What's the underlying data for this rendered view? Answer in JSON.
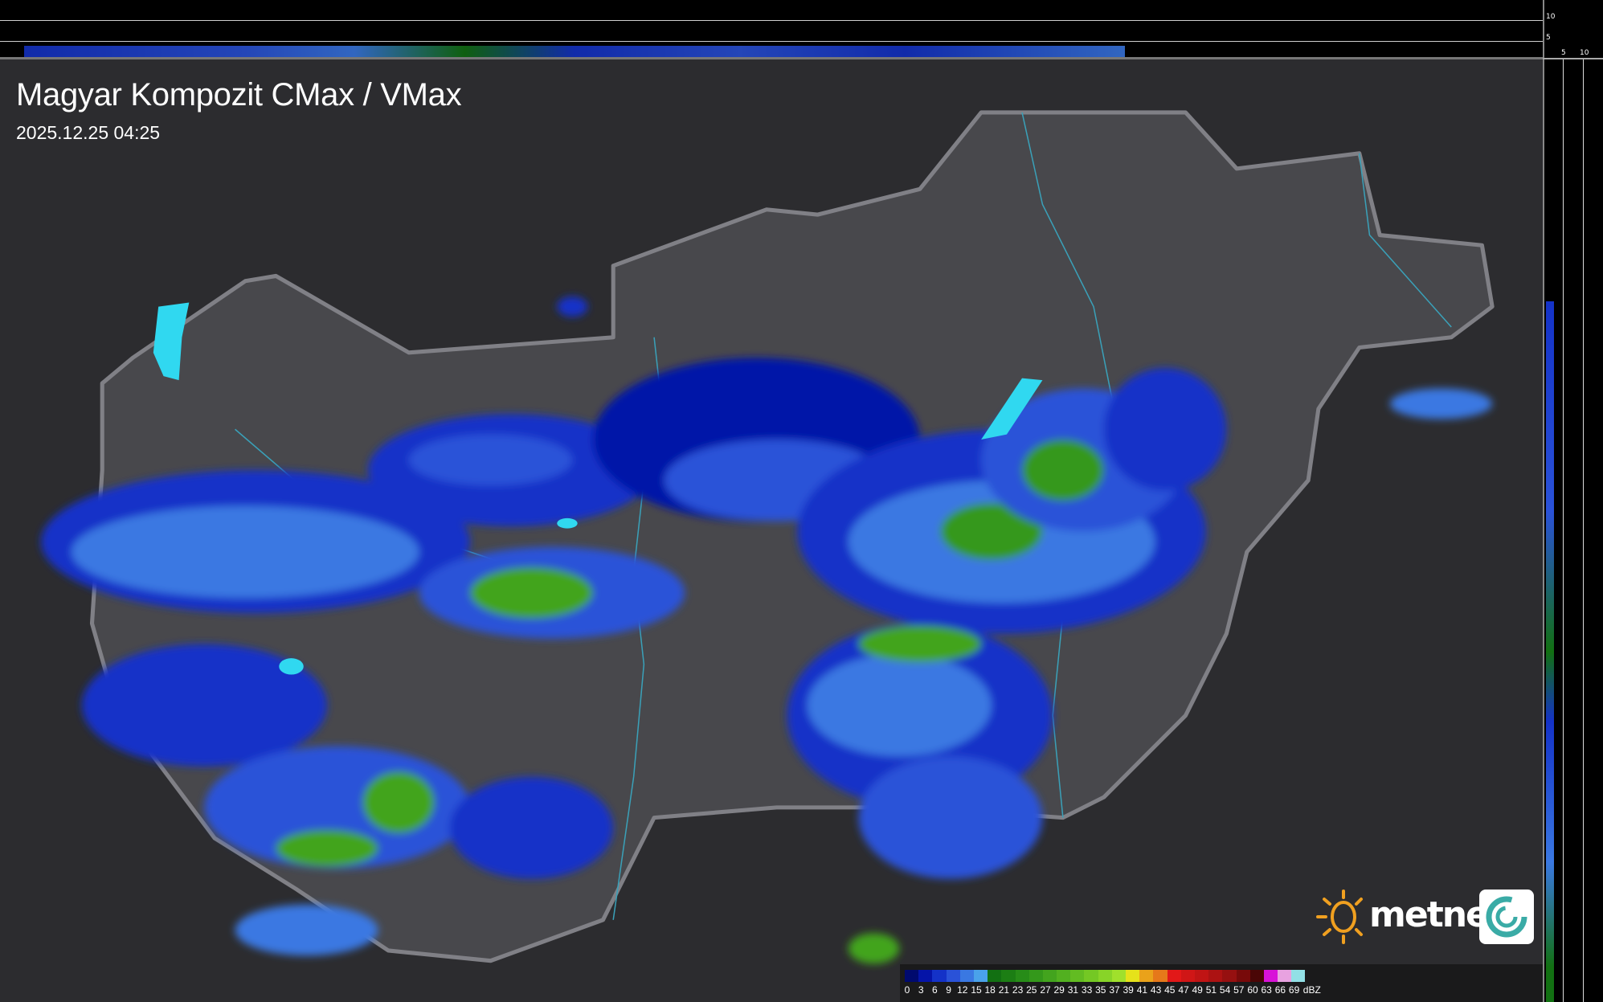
{
  "header": {
    "title": "Magyar Kompozit CMax / VMax",
    "timestamp": "2025.12.25 04:25"
  },
  "side_profiles": {
    "top_axis_labels": [
      "10",
      "5"
    ],
    "right_axis_labels": [
      "5",
      "10"
    ]
  },
  "legend": {
    "unit": "dBZ",
    "labels": [
      "0",
      "3",
      "6",
      "9",
      "12",
      "15",
      "18",
      "21",
      "23",
      "25",
      "27",
      "29",
      "31",
      "33",
      "35",
      "37",
      "39",
      "41",
      "43",
      "45",
      "47",
      "49",
      "51",
      "54",
      "57",
      "60",
      "63",
      "66",
      "69"
    ],
    "colors": [
      "#000a6e",
      "#0514a8",
      "#1432c8",
      "#2a52d8",
      "#3a78e2",
      "#4aa2ea",
      "#127012",
      "#1c7e14",
      "#278c18",
      "#34981b",
      "#43a41e",
      "#52b020",
      "#62bc22",
      "#74c824",
      "#88d428",
      "#a0e02c",
      "#e6e21a",
      "#eaa21a",
      "#e6781a",
      "#e21818",
      "#d01616",
      "#c01414",
      "#ac1212",
      "#961010",
      "#780a0a",
      "#4a0606",
      "#d812d8",
      "#e8a2e0",
      "#92e0e6"
    ]
  },
  "logo": {
    "text": "metnet",
    "sun_color": "#f0a020",
    "badge_color": "#3aaba6"
  },
  "map_colors": {
    "background": "#2c2c2f",
    "country_fill": "#48484c",
    "border": "#808086",
    "rivers": "#3aa0b8",
    "lakes": "#30d8f0"
  }
}
